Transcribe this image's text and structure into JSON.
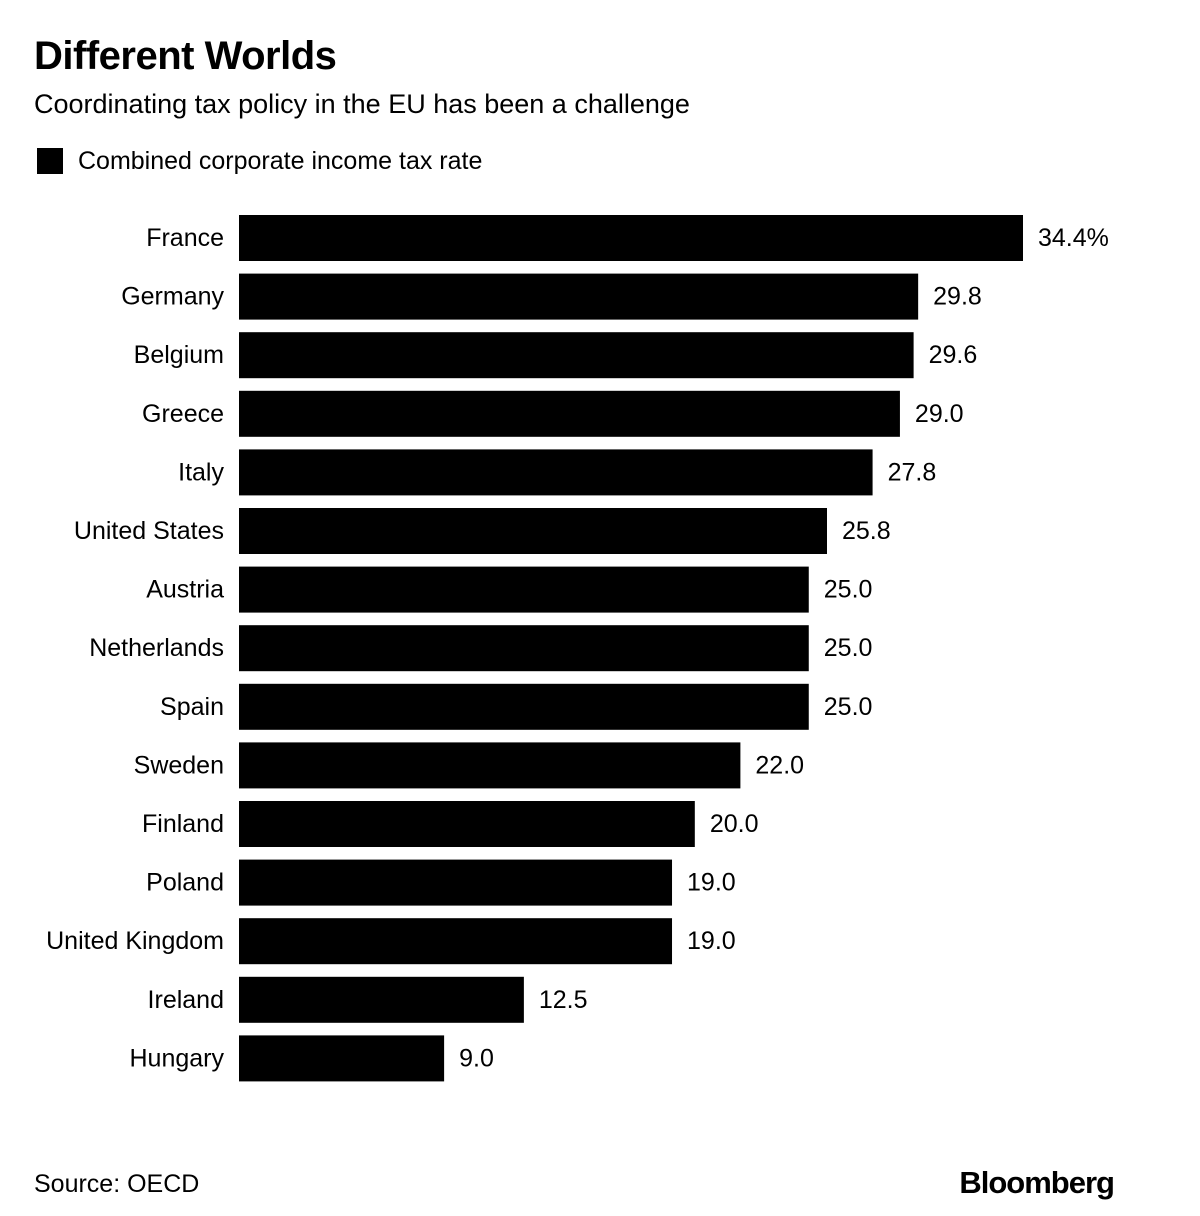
{
  "header": {
    "title": "Different Worlds",
    "subtitle": "Coordinating tax policy in the EU has been a challenge"
  },
  "legend": {
    "label": "Combined corporate income tax rate",
    "color": "#000000"
  },
  "chart_data": {
    "type": "bar",
    "orientation": "horizontal",
    "categories": [
      "France",
      "Germany",
      "Belgium",
      "Greece",
      "Italy",
      "United States",
      "Austria",
      "Netherlands",
      "Spain",
      "Sweden",
      "Finland",
      "Poland",
      "United Kingdom",
      "Ireland",
      "Hungary"
    ],
    "values": [
      34.4,
      29.8,
      29.6,
      29.0,
      27.8,
      25.8,
      25.0,
      25.0,
      25.0,
      22.0,
      20.0,
      19.0,
      19.0,
      12.5,
      9.0
    ],
    "value_labels": [
      "34.4%",
      "29.8",
      "29.6",
      "29.0",
      "27.8",
      "25.8",
      "25.0",
      "25.0",
      "25.0",
      "22.0",
      "20.0",
      "19.0",
      "19.0",
      "12.5",
      "9.0"
    ],
    "series_name": "Combined corporate income tax rate",
    "bar_color": "#000000",
    "xlim": [
      0,
      34.4
    ],
    "title": "Different Worlds",
    "grid": false
  },
  "footer": {
    "source": "Source: OECD",
    "brand": "Bloomberg"
  }
}
